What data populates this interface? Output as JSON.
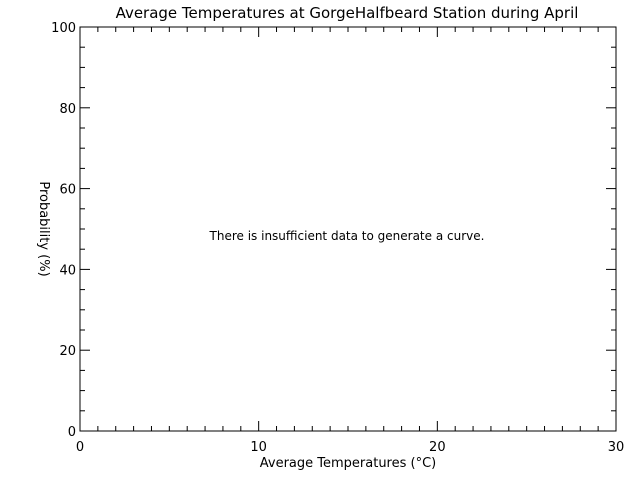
{
  "chart_data": {
    "type": "line",
    "title": "Average Temperatures at GorgeHalfbeard Station during April",
    "xlabel": "Average Temperatures (°C)",
    "ylabel": "Probability (%)",
    "xlim": [
      0,
      30
    ],
    "ylim": [
      0,
      100
    ],
    "x_major_ticks": [
      0,
      10,
      20,
      30
    ],
    "y_major_ticks": [
      0,
      20,
      40,
      60,
      80,
      100
    ],
    "x_minor_step": 1,
    "y_minor_step": 5,
    "grid": false,
    "series": [],
    "annotation": "There is insufficient data to generate a curve."
  }
}
